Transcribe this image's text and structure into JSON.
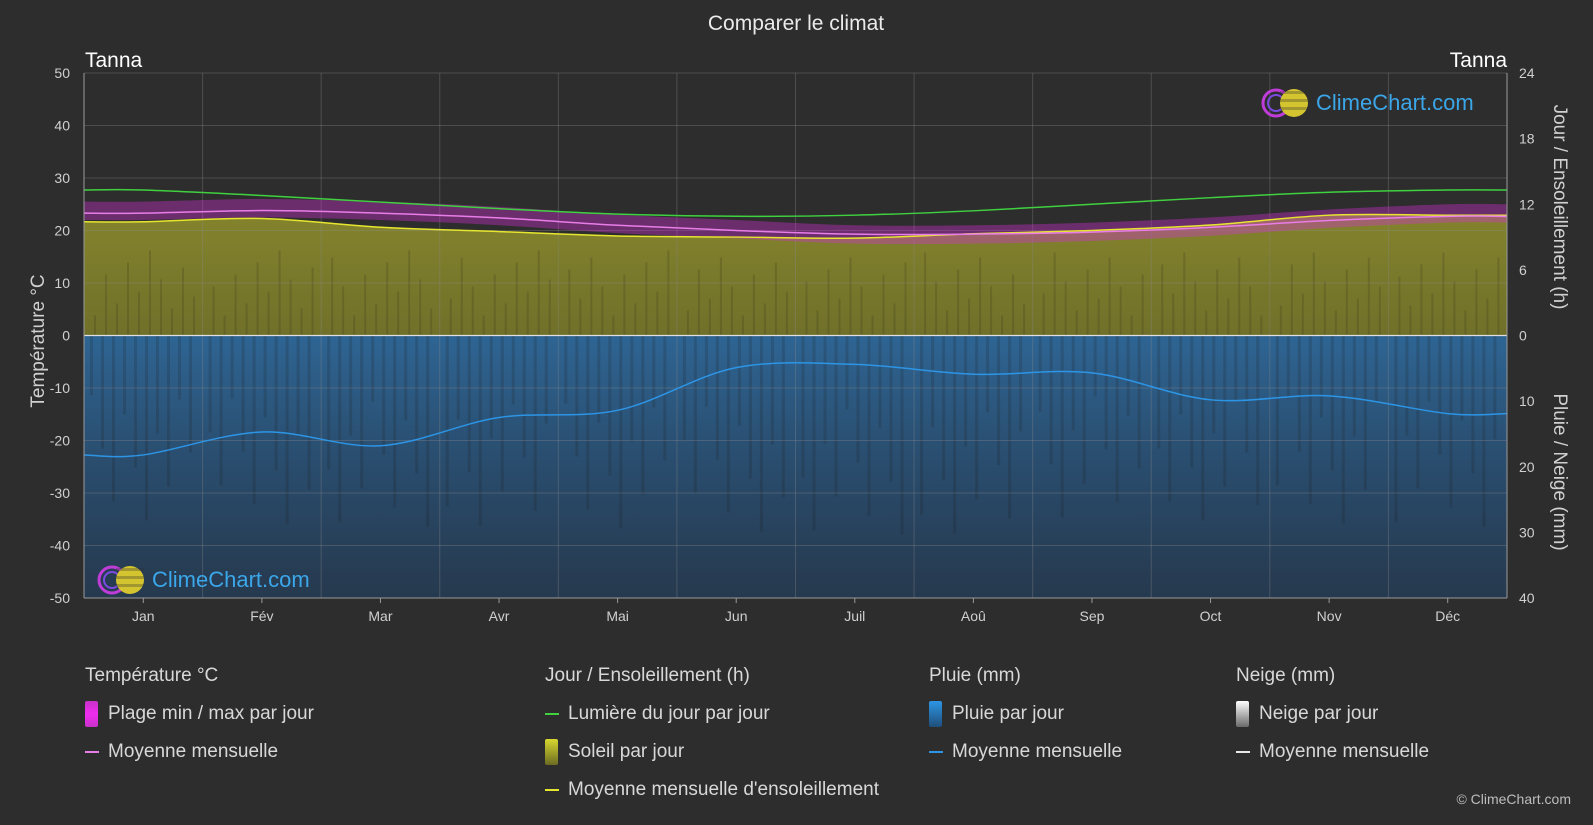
{
  "chart_data": {
    "type": "line",
    "title": "Comparer le climat",
    "location_left": "Tanna",
    "location_right": "Tanna",
    "x": [
      "Jan",
      "Fév",
      "Mar",
      "Avr",
      "Mai",
      "Jun",
      "Juil",
      "Aoû",
      "Sep",
      "Oct",
      "Nov",
      "Déc"
    ],
    "y_left": {
      "label": "Température °C",
      "range": [
        -50,
        50
      ],
      "ticks": [
        50,
        40,
        30,
        20,
        10,
        0,
        -10,
        -20,
        -30,
        -40,
        -50
      ]
    },
    "y_right_top": {
      "label": "Jour / Ensoleillement (h)",
      "range": [
        0,
        24
      ],
      "ticks": [
        24,
        18,
        12,
        6,
        0
      ]
    },
    "y_right_bottom": {
      "label": "Pluie / Neige (mm)",
      "range": [
        0,
        40
      ],
      "ticks": [
        0,
        10,
        20,
        30,
        40
      ]
    },
    "grid": true,
    "series": [
      {
        "name": "Lumière du jour par jour",
        "axis": "sun_h",
        "color": "#3fd13f",
        "values": [
          13.3,
          12.8,
          12.2,
          11.6,
          11.1,
          10.9,
          11.0,
          11.4,
          12.0,
          12.6,
          13.1,
          13.3
        ]
      },
      {
        "name": "Moyenne mensuelle",
        "axis": "temp_c",
        "color": "#e87de8",
        "values": [
          23.3,
          23.8,
          23.3,
          22.4,
          21.0,
          20.0,
          19.3,
          19.3,
          19.7,
          20.6,
          21.9,
          22.7
        ]
      },
      {
        "name": "Moyenne mensuelle d'ensoleillement",
        "axis": "sun_h",
        "color": "#e6e630",
        "values": [
          10.4,
          10.7,
          9.9,
          9.5,
          9.1,
          9.0,
          8.9,
          9.3,
          9.6,
          10.1,
          11.0,
          11.0
        ]
      },
      {
        "name": "Moyenne mensuelle",
        "axis": "rain_mm",
        "color": "#2d95e6",
        "values": [
          18.2,
          14.7,
          16.8,
          12.5,
          11.4,
          4.9,
          4.4,
          5.9,
          5.7,
          9.8,
          9.2,
          11.9
        ]
      }
    ],
    "temp_range_band": {
      "min": [
        22.0,
        22.5,
        22.0,
        21.0,
        19.5,
        18.5,
        17.5,
        17.5,
        18.0,
        19.0,
        20.5,
        21.5
      ],
      "max": [
        25.5,
        26.0,
        25.5,
        24.5,
        23.0,
        22.0,
        21.0,
        21.0,
        21.5,
        22.5,
        24.0,
        25.0
      ]
    }
  },
  "legend": {
    "temperature": {
      "title": "Température °C",
      "range": "Plage min / max par jour",
      "mean": "Moyenne mensuelle"
    },
    "sun": {
      "title": "Jour / Ensoleillement (h)",
      "daylight": "Lumière du jour par jour",
      "sunshine": "Soleil par jour",
      "sun_mean": "Moyenne mensuelle d'ensoleillement"
    },
    "rain": {
      "title": "Pluie (mm)",
      "daily": "Pluie par jour",
      "mean": "Moyenne mensuelle"
    },
    "snow": {
      "title": "Neige (mm)",
      "daily": "Neige par jour",
      "mean": "Moyenne mensuelle"
    }
  },
  "logo_text": "ClimeChart.com",
  "copyright": "© ClimeChart.com",
  "colors": {
    "background": "#2d2d2d",
    "grid": "#5a5a5a",
    "sun_fill": "#9b9b2a",
    "rain_fill": "#1f5f8f",
    "temp_band": "#d22fd2"
  }
}
